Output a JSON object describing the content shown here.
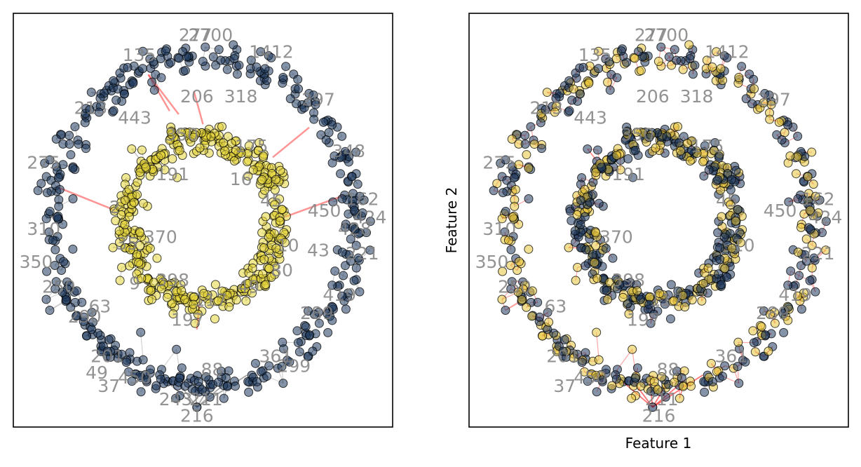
{
  "chart_data": [
    {
      "type": "scatter",
      "panel": "left",
      "title": "",
      "xlabel": "",
      "ylabel": "",
      "ticks": "none",
      "xlim": [
        -1.25,
        1.25
      ],
      "ylim": [
        -1.25,
        1.25
      ],
      "description_series": [
        {
          "name": "outer",
          "ring_radius": 1.0,
          "ring_noise": 0.09,
          "fill_color": "#1f3a5f",
          "n": 420
        },
        {
          "name": "inner",
          "ring_radius": 0.5,
          "ring_noise": 0.09,
          "fill_color": "#e6d53a",
          "n": 420
        }
      ],
      "edge_color_same": "#808080",
      "edge_color_cross": "#ff4d4d",
      "cross_edges": [
        {
          "from": [
            -0.36,
            0.88
          ],
          "to": [
            -0.16,
            0.64
          ]
        },
        {
          "from": [
            -0.36,
            0.88
          ],
          "to": [
            -0.22,
            0.66
          ]
        },
        {
          "from": [
            -0.06,
            0.78
          ],
          "to": [
            0.0,
            0.58
          ]
        },
        {
          "from": [
            0.7,
            0.56
          ],
          "to": [
            0.46,
            0.38
          ]
        },
        {
          "from": [
            0.93,
            0.15
          ],
          "to": [
            0.54,
            0.02
          ]
        },
        {
          "from": [
            -0.96,
            0.2
          ],
          "to": [
            -0.58,
            0.06
          ]
        },
        {
          "from": [
            -0.04,
            -0.66
          ],
          "to": [
            -0.02,
            -0.48
          ]
        }
      ],
      "point_labels": [
        {
          "text": "2700",
          "x": 0.05,
          "y": 1.12
        },
        {
          "text": "277",
          "x": -0.05,
          "y": 1.12
        },
        {
          "text": "1412",
          "x": 0.45,
          "y": 1.02
        },
        {
          "text": "135",
          "x": -0.42,
          "y": 1.0
        },
        {
          "text": "206",
          "x": -0.04,
          "y": 0.75
        },
        {
          "text": "318",
          "x": 0.25,
          "y": 0.75
        },
        {
          "text": "213",
          "x": -0.74,
          "y": 0.68
        },
        {
          "text": "443",
          "x": -0.45,
          "y": 0.62
        },
        {
          "text": "297",
          "x": 0.76,
          "y": 0.73
        },
        {
          "text": "348",
          "x": 0.96,
          "y": 0.42
        },
        {
          "text": "275",
          "x": -1.05,
          "y": 0.35
        },
        {
          "text": "450",
          "x": 0.8,
          "y": 0.06
        },
        {
          "text": "162",
          "x": 1.05,
          "y": 0.13
        },
        {
          "text": "424",
          "x": 1.1,
          "y": 0.02
        },
        {
          "text": "310",
          "x": -1.05,
          "y": -0.05
        },
        {
          "text": "350",
          "x": -1.1,
          "y": -0.25
        },
        {
          "text": "250",
          "x": -0.95,
          "y": -0.4
        },
        {
          "text": "63",
          "x": -0.68,
          "y": -0.52
        },
        {
          "text": "290",
          "x": -0.78,
          "y": -0.58
        },
        {
          "text": "201",
          "x": -0.63,
          "y": -0.82
        },
        {
          "text": "49",
          "x": -0.7,
          "y": -0.92
        },
        {
          "text": "37",
          "x": -0.62,
          "y": -1.0
        },
        {
          "text": "450",
          "x": -0.45,
          "y": -0.95
        },
        {
          "text": "88",
          "x": 0.06,
          "y": -0.9
        },
        {
          "text": "216",
          "x": -0.04,
          "y": -1.18
        },
        {
          "text": "211",
          "x": 0.02,
          "y": -1.08
        },
        {
          "text": "243",
          "x": -0.18,
          "y": -1.08
        },
        {
          "text": "361",
          "x": 0.48,
          "y": -0.82
        },
        {
          "text": "299",
          "x": 0.6,
          "y": -0.88
        },
        {
          "text": "289",
          "x": 0.75,
          "y": -0.56
        },
        {
          "text": "419",
          "x": 0.9,
          "y": -0.45
        },
        {
          "text": "428",
          "x": 1.0,
          "y": -0.05
        },
        {
          "text": "221",
          "x": 1.05,
          "y": -0.2
        },
        {
          "text": "43",
          "x": 0.76,
          "y": -0.18
        },
        {
          "text": "398",
          "x": -0.2,
          "y": -0.36
        },
        {
          "text": "370",
          "x": -0.28,
          "y": -0.1
        },
        {
          "text": "191",
          "x": -0.2,
          "y": 0.28
        },
        {
          "text": "350",
          "x": -0.14,
          "y": 0.52
        },
        {
          "text": "175",
          "x": 0.32,
          "y": 0.45
        },
        {
          "text": "45",
          "x": 0.45,
          "y": 0.12
        },
        {
          "text": "16",
          "x": 0.25,
          "y": 0.25
        },
        {
          "text": "10",
          "x": 0.56,
          "y": -0.15
        },
        {
          "text": "49",
          "x": 0.3,
          "y": -0.4
        },
        {
          "text": "80",
          "x": 0.52,
          "y": -0.3
        },
        {
          "text": "117",
          "x": 0.05,
          "y": -0.48
        },
        {
          "text": "197",
          "x": -0.1,
          "y": -0.6
        },
        {
          "text": "35",
          "x": -0.5,
          "y": -0.14
        },
        {
          "text": "9",
          "x": -0.45,
          "y": -0.38
        },
        {
          "text": "2",
          "x": -0.58,
          "y": 0.08
        }
      ]
    },
    {
      "type": "scatter",
      "panel": "right",
      "title": "",
      "xlabel": "Feature 1",
      "ylabel": "Feature 2",
      "ticks": "none",
      "xlim": [
        -1.25,
        1.25
      ],
      "ylim": [
        -1.25,
        1.25
      ],
      "description_series": [
        {
          "name": "outer",
          "ring_radius": 1.0,
          "ring_noise": 0.09,
          "fill_color": "#1f3a5f",
          "n": 420
        },
        {
          "name": "inner",
          "ring_radius": 0.5,
          "ring_noise": 0.09,
          "fill_color": "#e6d53a",
          "n": 420
        }
      ],
      "edge_color": "#ff0000",
      "point_labels": [
        {
          "text": "2700",
          "x": 0.05,
          "y": 1.12
        },
        {
          "text": "277",
          "x": -0.05,
          "y": 1.12
        },
        {
          "text": "1412",
          "x": 0.45,
          "y": 1.02
        },
        {
          "text": "135",
          "x": -0.42,
          "y": 1.0
        },
        {
          "text": "206",
          "x": -0.04,
          "y": 0.75
        },
        {
          "text": "318",
          "x": 0.25,
          "y": 0.75
        },
        {
          "text": "213",
          "x": -0.74,
          "y": 0.68
        },
        {
          "text": "443",
          "x": -0.45,
          "y": 0.62
        },
        {
          "text": "297",
          "x": 0.76,
          "y": 0.73
        },
        {
          "text": "275",
          "x": -1.05,
          "y": 0.35
        },
        {
          "text": "450",
          "x": 0.8,
          "y": 0.06
        },
        {
          "text": "162",
          "x": 1.05,
          "y": 0.13
        },
        {
          "text": "424",
          "x": 1.1,
          "y": 0.02
        },
        {
          "text": "310",
          "x": -1.05,
          "y": -0.05
        },
        {
          "text": "350",
          "x": -1.1,
          "y": -0.25
        },
        {
          "text": "250",
          "x": -0.95,
          "y": -0.4
        },
        {
          "text": "63",
          "x": -0.68,
          "y": -0.52
        },
        {
          "text": "201",
          "x": -0.63,
          "y": -0.82
        },
        {
          "text": "37",
          "x": -0.62,
          "y": -1.0
        },
        {
          "text": "450",
          "x": -0.45,
          "y": -0.95
        },
        {
          "text": "88",
          "x": 0.06,
          "y": -0.9
        },
        {
          "text": "216",
          "x": 0.0,
          "y": -1.18
        },
        {
          "text": "211",
          "x": 0.02,
          "y": -1.08
        },
        {
          "text": "361",
          "x": 0.48,
          "y": -0.82
        },
        {
          "text": "289",
          "x": 0.75,
          "y": -0.56
        },
        {
          "text": "419",
          "x": 0.9,
          "y": -0.45
        },
        {
          "text": "221",
          "x": 1.05,
          "y": -0.2
        },
        {
          "text": "398",
          "x": -0.2,
          "y": -0.36
        },
        {
          "text": "370",
          "x": -0.28,
          "y": -0.1
        },
        {
          "text": "191",
          "x": -0.2,
          "y": 0.28
        },
        {
          "text": "350",
          "x": -0.14,
          "y": 0.52
        },
        {
          "text": "175",
          "x": 0.32,
          "y": 0.45
        },
        {
          "text": "45",
          "x": 0.45,
          "y": 0.12
        },
        {
          "text": "10",
          "x": 0.56,
          "y": -0.15
        },
        {
          "text": "117",
          "x": 0.05,
          "y": -0.48
        },
        {
          "text": "197",
          "x": -0.1,
          "y": -0.6
        }
      ]
    }
  ]
}
